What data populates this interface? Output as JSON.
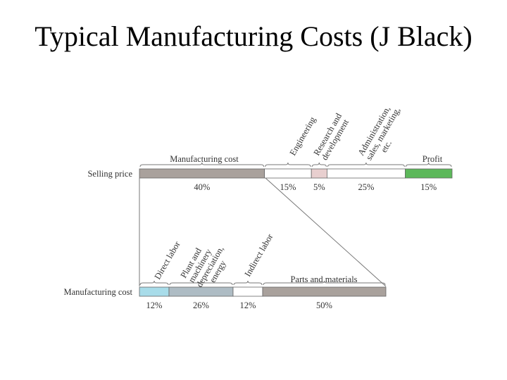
{
  "title": "Typical Manufacturing Costs (J Black)",
  "colors": {
    "manufacturing": "#a9a19c",
    "engineering": "#ffffff",
    "research": "#e8cfcf",
    "administration": "#ffffff",
    "profit": "#5cb85a",
    "direct_labor": "#a8dce9",
    "plant": "#aebcc4",
    "indirect": "#ffffff",
    "parts": "#a9a19c",
    "outline": "#666666"
  },
  "top_bar": {
    "row_label": "Selling price",
    "group_label_manufacturing": "Manufacturing cost",
    "group_label_profit": "Profit",
    "segments": [
      {
        "name": "manufacturing",
        "value": 40,
        "pct": "40%",
        "label": ""
      },
      {
        "name": "engineering",
        "value": 15,
        "pct": "15%",
        "label": "Engineering"
      },
      {
        "name": "research",
        "value": 5,
        "pct": "5%",
        "label": "Research and development"
      },
      {
        "name": "administration",
        "value": 25,
        "pct": "25%",
        "label": "Administration, sales, marketing, etc."
      },
      {
        "name": "profit",
        "value": 15,
        "pct": "15%",
        "label": ""
      }
    ]
  },
  "rotated_labels_top": {
    "engineering": "Engineering",
    "research_1": "Research and",
    "research_2": "development",
    "admin_1": "Administration,",
    "admin_2": "sales, marketing,",
    "admin_3": "etc."
  },
  "bottom_bar": {
    "row_label": "Manufacturing cost",
    "group_label_parts": "Parts and materials",
    "segments": [
      {
        "name": "direct_labor",
        "value": 12,
        "pct": "12%"
      },
      {
        "name": "plant",
        "value": 26,
        "pct": "26%"
      },
      {
        "name": "indirect",
        "value": 12,
        "pct": "12%"
      },
      {
        "name": "parts",
        "value": 50,
        "pct": "50%"
      }
    ]
  },
  "rotated_labels_bottom": {
    "direct_labor": "Direct labor",
    "plant_1": "Plant and",
    "plant_2": "machinery",
    "plant_3": "depreciation,",
    "plant_4": "energy",
    "indirect": "Indirect labor"
  }
}
